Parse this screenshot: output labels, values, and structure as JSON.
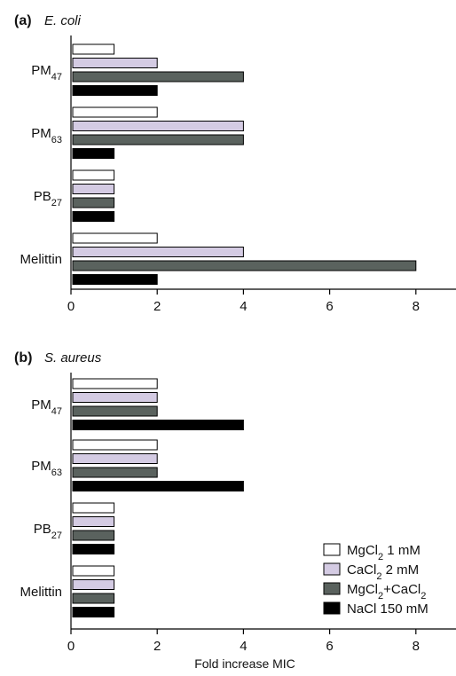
{
  "figure": {
    "xlabel": "Fold increase MIC"
  },
  "chart_data": [
    {
      "type": "bar",
      "orientation": "horizontal",
      "panel_letter": "(a)",
      "title": "E. coli",
      "categories": [
        {
          "base": "PM",
          "sub": "47"
        },
        {
          "base": "PM",
          "sub": "63"
        },
        {
          "base": "PB",
          "sub": "27"
        },
        {
          "base": "Melittin",
          "sub": ""
        }
      ],
      "series": [
        {
          "name": "MgCl2 1 mM",
          "values": [
            1,
            2,
            1,
            2
          ]
        },
        {
          "name": "CaCl2 2 mM",
          "values": [
            2,
            4,
            1,
            4
          ]
        },
        {
          "name": "MgCl2+CaCl2",
          "values": [
            4,
            4,
            1,
            8
          ]
        },
        {
          "name": "NaCl 150 mM",
          "values": [
            2,
            1,
            1,
            2
          ]
        }
      ],
      "xlim": [
        0,
        9
      ],
      "ticks": [
        0,
        2,
        4,
        6,
        8
      ],
      "xlabel": ""
    },
    {
      "type": "bar",
      "orientation": "horizontal",
      "panel_letter": "(b)",
      "title": "S. aureus",
      "categories": [
        {
          "base": "PM",
          "sub": "47"
        },
        {
          "base": "PM",
          "sub": "63"
        },
        {
          "base": "PB",
          "sub": "27"
        },
        {
          "base": "Melittin",
          "sub": ""
        }
      ],
      "series": [
        {
          "name": "MgCl2 1 mM",
          "values": [
            2,
            2,
            1,
            1
          ]
        },
        {
          "name": "CaCl2 2 mM",
          "values": [
            2,
            2,
            1,
            1
          ]
        },
        {
          "name": "MgCl2+CaCl2",
          "values": [
            2,
            2,
            1,
            1
          ]
        },
        {
          "name": "NaCl 150 mM",
          "values": [
            4,
            4,
            1,
            1
          ]
        }
      ],
      "xlim": [
        0,
        9
      ],
      "ticks": [
        0,
        2,
        4,
        6,
        8
      ],
      "xlabel": "Fold increase MIC"
    }
  ],
  "legend": {
    "placement": "bottom-right of panel (b)",
    "entries": [
      {
        "parts": [
          {
            "t": "MgCl",
            "sub": false
          },
          {
            "t": "2",
            "sub": true
          },
          {
            "t": " 1 mM",
            "sub": false
          }
        ],
        "color": "#ffffff"
      },
      {
        "parts": [
          {
            "t": "CaCl",
            "sub": false
          },
          {
            "t": "2",
            "sub": true
          },
          {
            "t": " 2 mM",
            "sub": false
          }
        ],
        "color": "#d4cbe3"
      },
      {
        "parts": [
          {
            "t": "MgCl",
            "sub": false
          },
          {
            "t": "2",
            "sub": true
          },
          {
            "t": "+CaCl",
            "sub": false
          },
          {
            "t": "2",
            "sub": true
          }
        ],
        "color": "#5a625e"
      },
      {
        "parts": [
          {
            "t": "NaCl 150 mM",
            "sub": false
          }
        ],
        "color": "#000000"
      }
    ]
  },
  "colors": {
    "series": [
      "#ffffff",
      "#d4cbe3",
      "#5a625e",
      "#000000"
    ],
    "bar_stroke": "#000000",
    "axis": "#000000"
  }
}
